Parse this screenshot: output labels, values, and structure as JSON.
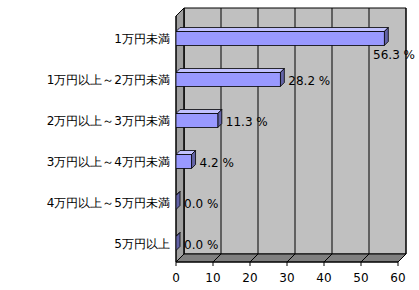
{
  "chart_data": {
    "type": "bar",
    "orientation": "horizontal",
    "categories": [
      "1万円未満",
      "1万円以上～2万円未満",
      "2万円以上～3万円未満",
      "3万円以上～4万円未満",
      "4万円以上～5万円未満",
      "5万円以上"
    ],
    "values": [
      56.3,
      28.2,
      11.3,
      4.2,
      0.0,
      0.0
    ],
    "value_labels": [
      "56.3 %",
      "28.2 %",
      "11.3 %",
      "4.2 %",
      "0.0 %",
      "0.0 %"
    ],
    "color": "#9999ff",
    "xlim": [
      0,
      60
    ],
    "xticks": [
      0,
      10,
      20,
      30,
      40,
      50,
      60
    ],
    "grid": true,
    "data_labels": true
  }
}
